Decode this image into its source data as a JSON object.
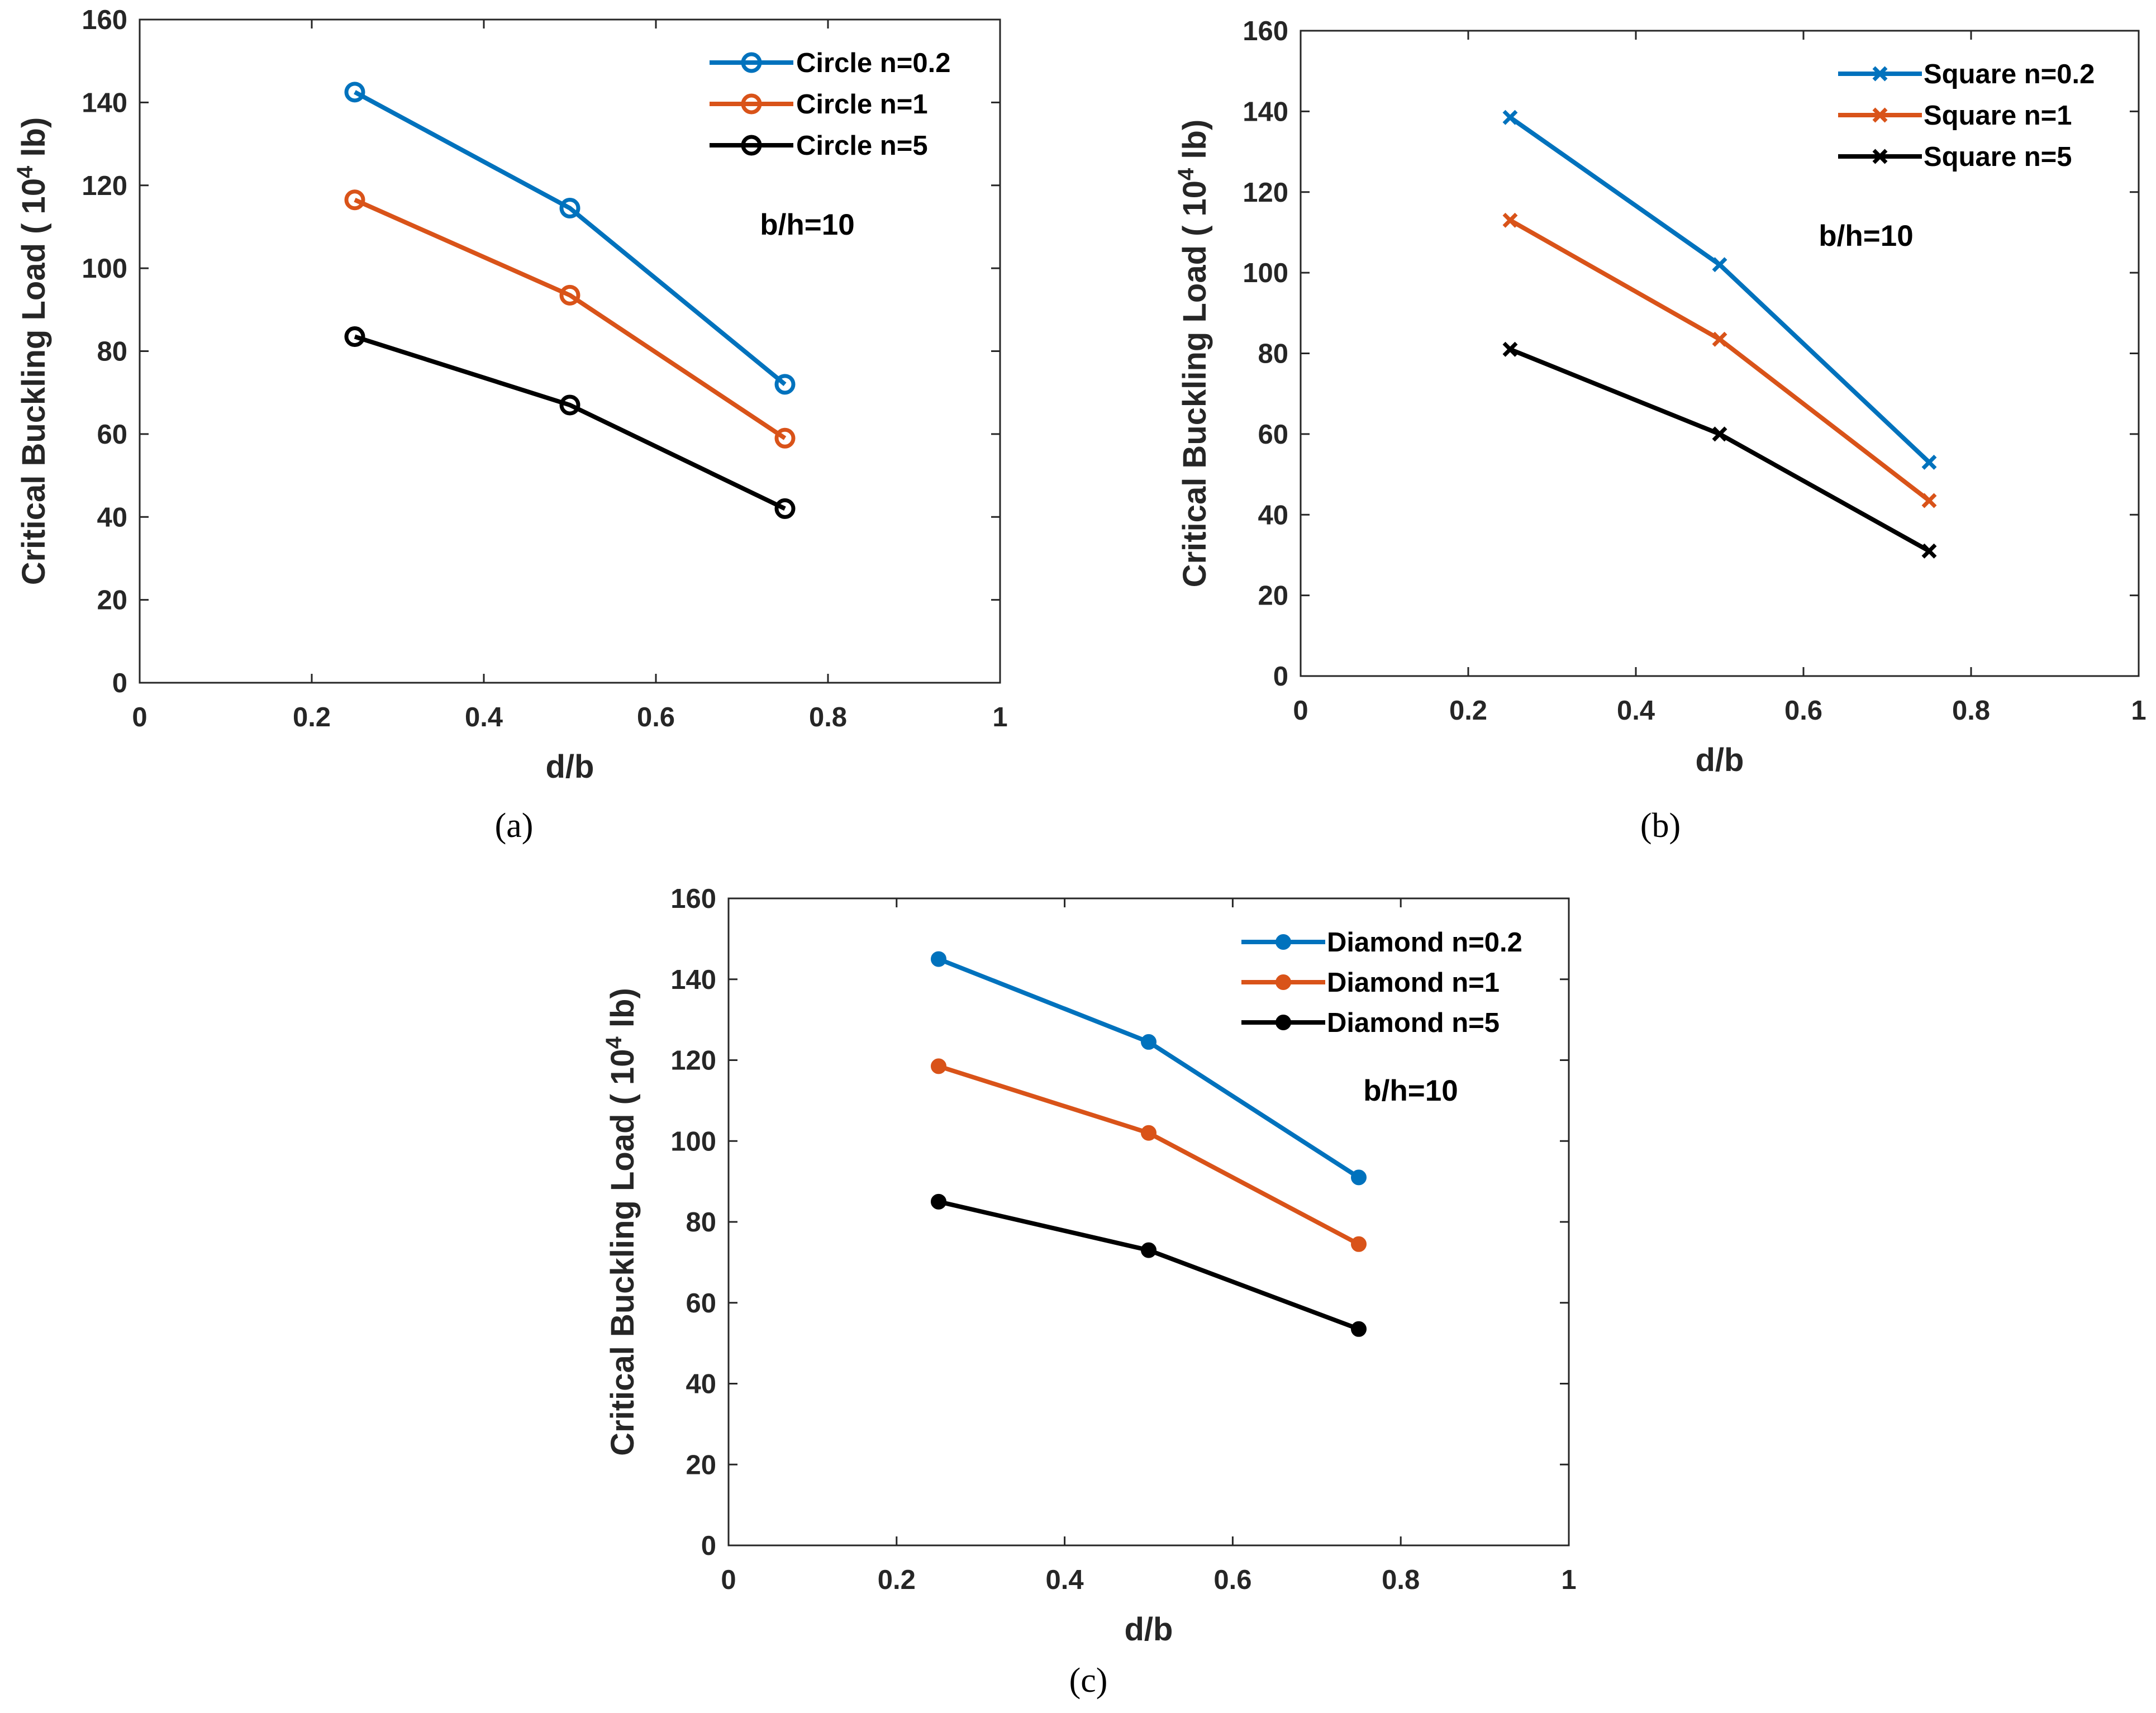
{
  "colors": {
    "blue": "#0072BD",
    "orange": "#D95319",
    "black": "#000000"
  },
  "chart_data": [
    {
      "type": "line",
      "caption": "(a)",
      "marker": "circle-open",
      "xlabel": "d/b",
      "ylabel": "Critical Buckling Load ( 10",
      "ylabel_sup": "4",
      "ylabel_tail": " lb)",
      "xlim": [
        0,
        1
      ],
      "ylim": [
        0,
        160
      ],
      "xticks": [
        "0",
        "0.2",
        "0.4",
        "0.6",
        "0.8",
        "1"
      ],
      "yticks": [
        "0",
        "20",
        "40",
        "60",
        "80",
        "100",
        "120",
        "140",
        "160"
      ],
      "annotation": "b/h=10",
      "legend_position": "top-right",
      "x": [
        0.25,
        0.5,
        0.75
      ],
      "series": [
        {
          "name": "Circle n=0.2",
          "color": "#0072BD",
          "values": [
            142.5,
            114.5,
            72
          ]
        },
        {
          "name": "Circle n=1",
          "color": "#D95319",
          "values": [
            116.5,
            93.5,
            59
          ]
        },
        {
          "name": "Circle n=5",
          "color": "#000000",
          "values": [
            83.5,
            67,
            42
          ]
        }
      ]
    },
    {
      "type": "line",
      "caption": "(b)",
      "marker": "x",
      "xlabel": "d/b",
      "ylabel": "Critical Buckling Load ( 10",
      "ylabel_sup": "4",
      "ylabel_tail": " lb)",
      "xlim": [
        0,
        1
      ],
      "ylim": [
        0,
        160
      ],
      "xticks": [
        "0",
        "0.2",
        "0.4",
        "0.6",
        "0.8",
        "1"
      ],
      "yticks": [
        "0",
        "20",
        "40",
        "60",
        "80",
        "100",
        "120",
        "140",
        "160"
      ],
      "annotation": "b/h=10",
      "legend_position": "top-right",
      "x": [
        0.25,
        0.5,
        0.75
      ],
      "series": [
        {
          "name": "Square n=0.2",
          "color": "#0072BD",
          "values": [
            138.5,
            102,
            53
          ]
        },
        {
          "name": "Square n=1",
          "color": "#D95319",
          "values": [
            113,
            83.5,
            43.5
          ]
        },
        {
          "name": "Square n=5",
          "color": "#000000",
          "values": [
            81,
            60,
            31
          ]
        }
      ]
    },
    {
      "type": "line",
      "caption": "(c)",
      "marker": "circle-filled",
      "xlabel": "d/b",
      "ylabel": "Critical Buckling Load ( 10",
      "ylabel_sup": "4",
      "ylabel_tail": " lb)",
      "xlim": [
        0,
        1
      ],
      "ylim": [
        0,
        160
      ],
      "xticks": [
        "0",
        "0.2",
        "0.4",
        "0.6",
        "0.8",
        "1"
      ],
      "yticks": [
        "0",
        "20",
        "40",
        "60",
        "80",
        "100",
        "120",
        "140",
        "160"
      ],
      "annotation": "b/h=10",
      "legend_position": "top-right",
      "x": [
        0.25,
        0.5,
        0.75
      ],
      "series": [
        {
          "name": "Diamond n=0.2",
          "color": "#0072BD",
          "values": [
            145,
            124.5,
            91
          ]
        },
        {
          "name": "Diamond n=1",
          "color": "#D95319",
          "values": [
            118.5,
            102,
            74.5
          ]
        },
        {
          "name": "Diamond n=5",
          "color": "#000000",
          "values": [
            85,
            73,
            53.5
          ]
        }
      ]
    }
  ]
}
